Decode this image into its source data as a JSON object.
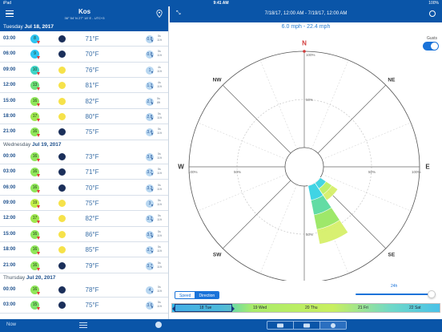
{
  "status": {
    "device": "iPad",
    "wifi": "wifi-icon",
    "time": "9:41 AM",
    "battery": "100%"
  },
  "location": {
    "name": "Kos",
    "coords": "36° 54' N 27° 18' E - UTC+3"
  },
  "days": [
    {
      "label": "Tuesday",
      "date": "Jul 18, 2017",
      "active": true,
      "rows": [
        {
          "time": "03:00",
          "wind": "8",
          "wind_color": "#2ec4f0",
          "moon": "dark",
          "temp": "71°F",
          "wave": "0.8",
          "period": [
            "5s",
            "11ft"
          ]
        },
        {
          "time": "06:00",
          "wind": "9",
          "wind_color": "#2ec4f0",
          "moon": "dark",
          "temp": "70°F",
          "wave": "0.8",
          "period": [
            "5s",
            "11ft"
          ]
        },
        {
          "time": "09:00",
          "wind": "10",
          "wind_color": "#3fd4c7",
          "moon": "sun",
          "temp": "76°F",
          "wave": "1",
          "period": [
            "4s",
            "11ft"
          ]
        },
        {
          "time": "12:00",
          "wind": "13",
          "wind_color": "#6ee07a",
          "moon": "sun",
          "temp": "81°F",
          "wave": "1.3",
          "period": [
            "4s",
            "11ft"
          ]
        },
        {
          "time": "15:00",
          "wind": "16",
          "wind_color": "#8fe65a",
          "moon": "sun",
          "temp": "82°F",
          "wave": "2.1",
          "period": [
            "5s",
            "8ft"
          ]
        },
        {
          "time": "18:00",
          "wind": "17",
          "wind_color": "#9fe84e",
          "moon": "sun",
          "temp": "80°F",
          "wave": "2.8",
          "period": [
            "5s",
            "11ft"
          ]
        },
        {
          "time": "21:00",
          "wind": "16",
          "wind_color": "#8fe65a",
          "moon": "dark",
          "temp": "75°F",
          "wave": "3.4",
          "period": [
            "5s",
            "11ft"
          ]
        }
      ]
    },
    {
      "label": "Wednesday",
      "date": "Jul 19, 2017",
      "active": false,
      "rows": [
        {
          "time": "00:00",
          "wind": "16",
          "wind_color": "#8fe65a",
          "moon": "dark",
          "temp": "73°F",
          "wave": "3.8",
          "period": [
            "5s",
            "11ft"
          ]
        },
        {
          "time": "03:00",
          "wind": "16",
          "wind_color": "#8fe65a",
          "moon": "dark",
          "temp": "71°F",
          "wave": "3.7",
          "period": [
            "5s",
            "11ft"
          ]
        },
        {
          "time": "06:00",
          "wind": "16",
          "wind_color": "#8fe65a",
          "moon": "dark",
          "temp": "70°F",
          "wave": "3.3",
          "period": [
            "5s",
            "11ft"
          ]
        },
        {
          "time": "09:00",
          "wind": "19",
          "wind_color": "#c2ee4a",
          "moon": "sun",
          "temp": "75°F",
          "wave": "3",
          "period": [
            "5s",
            "11ft"
          ]
        },
        {
          "time": "12:00",
          "wind": "17",
          "wind_color": "#9fe84e",
          "moon": "sun",
          "temp": "82°F",
          "wave": "3.2",
          "period": [
            "5s",
            "11ft"
          ]
        },
        {
          "time": "15:00",
          "wind": "16",
          "wind_color": "#8fe65a",
          "moon": "sun",
          "temp": "86°F",
          "wave": "3.5",
          "period": [
            "5s",
            "11ft"
          ]
        },
        {
          "time": "18:00",
          "wind": "16",
          "wind_color": "#8fe65a",
          "moon": "sun",
          "temp": "85°F",
          "wave": "3.7",
          "period": [
            "5s",
            "11ft"
          ]
        },
        {
          "time": "21:00",
          "wind": "16",
          "wind_color": "#8fe65a",
          "moon": "dark",
          "temp": "79°F",
          "wave": "3.7",
          "period": [
            "5s",
            "11ft"
          ]
        }
      ]
    },
    {
      "label": "Thursday",
      "date": "Jul 20, 2017",
      "active": false,
      "rows": [
        {
          "time": "00:00",
          "wind": "16",
          "wind_color": "#8fe65a",
          "moon": "dark",
          "temp": "78°F",
          "wave": "4",
          "period": [
            "5s",
            "11ft"
          ]
        },
        {
          "time": "03:00",
          "wind": "15",
          "wind_color": "#7fe36a",
          "moon": "dark",
          "temp": "75°F",
          "wave": "3.6",
          "period": [
            "5s",
            "11ft"
          ]
        }
      ]
    }
  ],
  "right": {
    "expand_icon": "expand-icon",
    "range": "7/18/17, 12:00 AM - 7/19/17, 12:00 AM",
    "more_icon": "more-icon",
    "speed_range": "6.0 mph - 22.4 mph",
    "gusts_label": "Gusts",
    "gusts_on": true
  },
  "chart_data": {
    "type": "windrose",
    "title": "",
    "directions": [
      "N",
      "NE",
      "E",
      "SE",
      "S",
      "SW",
      "W",
      "NW"
    ],
    "ring_labels": [
      "100%",
      "50%",
      "50%",
      "100%"
    ],
    "sectors": [
      {
        "direction": "SSE",
        "percent": 0.62,
        "speed_bands": [
          {
            "max": 13,
            "color": "#3fd4e8"
          },
          {
            "max": 16,
            "color": "#5fdca8"
          },
          {
            "max": 19,
            "color": "#9be86a"
          },
          {
            "max": 22.4,
            "color": "#d6f06a"
          }
        ]
      },
      {
        "direction": "SE",
        "percent": 0.22,
        "speed_bands": [
          {
            "max": 13,
            "color": "#3fd4e8"
          },
          {
            "max": 16,
            "color": "#bdf06a"
          },
          {
            "max": 22.4,
            "color": "#d6f06a"
          }
        ]
      }
    ]
  },
  "modes": {
    "speed": "Speed",
    "direction": "Direction",
    "selected": "direction"
  },
  "window": {
    "label": "24h",
    "value_fraction": 0.95
  },
  "timeline": [
    "18 Tue",
    "19 Wed",
    "20 Thu",
    "21 Fri",
    "22 Sat"
  ],
  "bottombar": {
    "now": "Now",
    "list_icon": "list-icon",
    "globe_icon": "globe-icon",
    "segments": [
      "chart-icon",
      "bar-chart-icon",
      "compass-icon"
    ],
    "selected_segment": 2
  }
}
